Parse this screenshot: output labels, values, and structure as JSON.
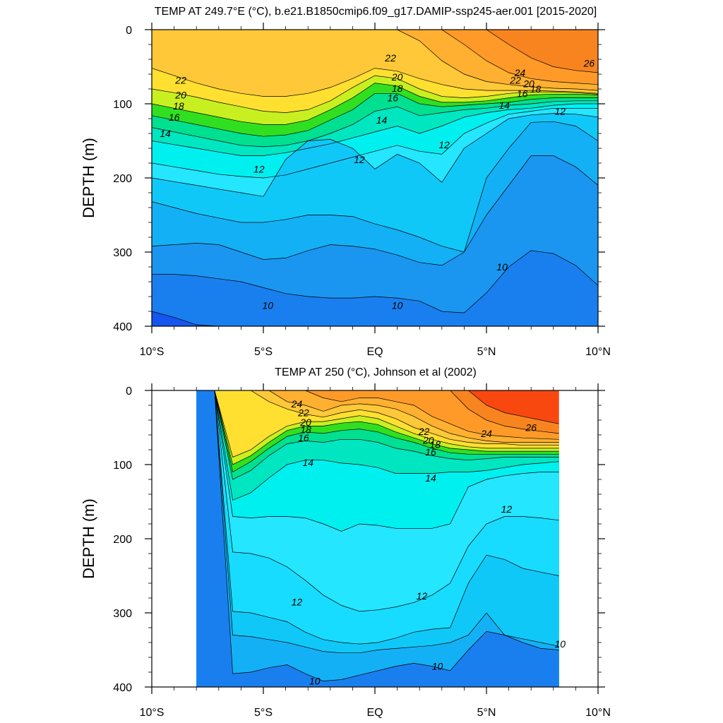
{
  "chart_data": [
    {
      "type": "contour",
      "title": "TEMP AT 249.7°E (°C), b.e21.B1850cmip6.f09_g17.DAMIP-ssp245-aer.001 [2015-2020]",
      "ylabel": "DEPTH (m)",
      "xlabel": "",
      "xlim": [
        -10,
        10
      ],
      "ylim": [
        400,
        0
      ],
      "x_ticks": [
        {
          "value": -10,
          "label": "10°S"
        },
        {
          "value": -5,
          "label": "5°S"
        },
        {
          "value": 0,
          "label": "EQ"
        },
        {
          "value": 5,
          "label": "5°N"
        },
        {
          "value": 10,
          "label": "10°N"
        }
      ],
      "y_ticks": [
        {
          "value": 0,
          "label": "0"
        },
        {
          "value": 100,
          "label": "100"
        },
        {
          "value": 200,
          "label": "200"
        },
        {
          "value": 300,
          "label": "300"
        },
        {
          "value": 400,
          "label": "400"
        }
      ],
      "data_extent": [
        -10,
        10
      ],
      "levels": [
        {
          "value": 26,
          "depth": [
            0,
            0,
            0,
            0,
            0,
            0,
            0,
            0,
            0,
            0,
            0,
            0,
            0,
            0,
            0,
            0,
            0,
            0,
            0,
            0,
            0
          ]
        },
        {
          "value": 25,
          "depth": [
            0,
            0,
            0,
            0,
            0,
            0,
            0,
            0,
            0,
            0,
            0,
            0,
            0,
            0,
            0,
            0,
            20,
            38,
            50,
            55,
            58
          ]
        },
        {
          "value": 24,
          "depth": [
            0,
            0,
            0,
            0,
            0,
            0,
            0,
            0,
            0,
            0,
            0,
            0,
            0,
            0,
            20,
            42,
            58,
            66,
            70,
            72,
            74
          ]
        },
        {
          "value": 23,
          "depth": [
            0,
            0,
            0,
            0,
            0,
            0,
            0,
            0,
            0,
            0,
            0,
            0,
            15,
            42,
            60,
            70,
            74,
            77,
            79,
            80,
            82
          ]
        },
        {
          "value": 22,
          "depth": [
            52,
            62,
            72,
            80,
            86,
            90,
            90,
            86,
            78,
            66,
            52,
            56,
            66,
            74,
            80,
            82,
            82,
            82,
            83,
            84,
            86
          ]
        },
        {
          "value": 20,
          "depth": [
            80,
            85,
            91,
            98,
            104,
            110,
            112,
            108,
            96,
            78,
            62,
            66,
            80,
            90,
            92,
            90,
            86,
            84,
            84,
            85,
            87
          ]
        },
        {
          "value": 18,
          "depth": [
            100,
            106,
            112,
            118,
            124,
            128,
            128,
            122,
            108,
            92,
            72,
            76,
            90,
            98,
            98,
            96,
            92,
            88,
            87,
            87,
            88
          ]
        },
        {
          "value": 16,
          "depth": [
            116,
            122,
            128,
            134,
            140,
            144,
            142,
            136,
            122,
            108,
            86,
            86,
            100,
            104,
            102,
            100,
            98,
            94,
            92,
            92,
            92
          ]
        },
        {
          "value": 15,
          "depth": [
            132,
            138,
            144,
            150,
            156,
            158,
            156,
            150,
            140,
            128,
            110,
            104,
            116,
            112,
            108,
            106,
            102,
            100,
            97,
            96,
            96
          ]
        },
        {
          "value": 14,
          "depth": [
            150,
            155,
            160,
            165,
            170,
            170,
            166,
            160,
            154,
            146,
            138,
            130,
            140,
            130,
            118,
            112,
            108,
            106,
            102,
            100,
            100
          ]
        },
        {
          "value": 13,
          "depth": [
            180,
            185,
            190,
            195,
            198,
            200,
            196,
            188,
            180,
            172,
            164,
            156,
            164,
            168,
            140,
            126,
            114,
            110,
            106,
            106,
            106
          ]
        },
        {
          "value": 12,
          "depth": [
            200,
            205,
            210,
            215,
            220,
            225,
            175,
            150,
            148,
            160,
            188,
            168,
            180,
            206,
            160,
            140,
            120,
            115,
            113,
            114,
            118
          ]
        },
        {
          "value": 11,
          "depth": [
            232,
            240,
            248,
            254,
            260,
            260,
            256,
            250,
            250,
            252,
            262,
            270,
            280,
            292,
            300,
            200,
            160,
            125,
            124,
            130,
            150
          ]
        },
        {
          "value": 10.5,
          "depth": [
            292,
            290,
            288,
            290,
            300,
            310,
            308,
            298,
            290,
            292,
            296,
            304,
            314,
            318,
            300,
            250,
            210,
            170,
            170,
            185,
            210
          ]
        },
        {
          "value": 10,
          "depth": [
            330,
            330,
            332,
            336,
            340,
            348,
            356,
            360,
            362,
            362,
            360,
            362,
            366,
            380,
            382,
            355,
            320,
            298,
            302,
            318,
            345
          ]
        },
        {
          "value": 9.5,
          "depth": [
            380,
            388,
            398,
            400,
            400,
            400,
            400,
            400,
            400,
            400,
            400,
            400,
            400,
            400,
            400,
            400,
            400,
            400,
            400,
            400,
            400
          ]
        }
      ],
      "labels": [
        {
          "text": "26",
          "x": 9.6,
          "depth": 45
        },
        {
          "text": "24",
          "x": 6.5,
          "depth": 58
        },
        {
          "text": "22",
          "x": 0.7,
          "depth": 38
        },
        {
          "text": "22",
          "x": -8.7,
          "depth": 68
        },
        {
          "text": "22",
          "x": 6.3,
          "depth": 68
        },
        {
          "text": "20",
          "x": 1.0,
          "depth": 64
        },
        {
          "text": "20",
          "x": -8.7,
          "depth": 88
        },
        {
          "text": "20",
          "x": 6.9,
          "depth": 73
        },
        {
          "text": "18",
          "x": 1.0,
          "depth": 79
        },
        {
          "text": "18",
          "x": -8.8,
          "depth": 103
        },
        {
          "text": "18",
          "x": 7.2,
          "depth": 80
        },
        {
          "text": "16",
          "x": 0.8,
          "depth": 92
        },
        {
          "text": "16",
          "x": -9.0,
          "depth": 118
        },
        {
          "text": "16",
          "x": 6.6,
          "depth": 86
        },
        {
          "text": "14",
          "x": 0.3,
          "depth": 122
        },
        {
          "text": "14",
          "x": -9.4,
          "depth": 140
        },
        {
          "text": "14",
          "x": 5.8,
          "depth": 102
        },
        {
          "text": "12",
          "x": 8.3,
          "depth": 110
        },
        {
          "text": "12",
          "x": 3.1,
          "depth": 155
        },
        {
          "text": "12",
          "x": -0.7,
          "depth": 175
        },
        {
          "text": "12",
          "x": -5.2,
          "depth": 188
        },
        {
          "text": "10",
          "x": 5.7,
          "depth": 320
        },
        {
          "text": "10",
          "x": -4.8,
          "depth": 372
        },
        {
          "text": "10",
          "x": 1.0,
          "depth": 372
        }
      ]
    },
    {
      "type": "contour",
      "title": "TEMP AT 250 (°C), Johnson et al (2002)",
      "ylabel": "DEPTH (m)",
      "xlabel": "",
      "xlim": [
        -10,
        10
      ],
      "ylim": [
        400,
        0
      ],
      "x_ticks": [
        {
          "value": -10,
          "label": "10°S"
        },
        {
          "value": -5,
          "label": "5°S"
        },
        {
          "value": 0,
          "label": "EQ"
        },
        {
          "value": 5,
          "label": "5°N"
        },
        {
          "value": 10,
          "label": "10°N"
        }
      ],
      "y_ticks": [
        {
          "value": 0,
          "label": "0"
        },
        {
          "value": 100,
          "label": "100"
        },
        {
          "value": 200,
          "label": "200"
        },
        {
          "value": 300,
          "label": "300"
        },
        {
          "value": 400,
          "label": "400"
        }
      ],
      "data_extent": [
        -8,
        8.25
      ],
      "levels": [
        {
          "value": 27,
          "depth": [
            0,
            0,
            0,
            0,
            0,
            0,
            0,
            0,
            0,
            0,
            0,
            0,
            0,
            0,
            0,
            0,
            0,
            0,
            0,
            0,
            0
          ]
        },
        {
          "value": 26,
          "depth": [
            0,
            0,
            0,
            0,
            0,
            0,
            0,
            0,
            0,
            0,
            0,
            0,
            0,
            0,
            0,
            0,
            20,
            30,
            35,
            40,
            45
          ]
        },
        {
          "value": 25,
          "depth": [
            0,
            0,
            0,
            0,
            0,
            0,
            0,
            0,
            0,
            0,
            0,
            0,
            0,
            0,
            0,
            25,
            40,
            48,
            52,
            55,
            58
          ]
        },
        {
          "value": 24,
          "depth": [
            0,
            0,
            0,
            0,
            0,
            0,
            0,
            10,
            15,
            10,
            10,
            15,
            20,
            35,
            45,
            55,
            60,
            62,
            64,
            65,
            66
          ]
        },
        {
          "value": 23,
          "depth": [
            0,
            0,
            0,
            0,
            0,
            15,
            20,
            28,
            20,
            18,
            20,
            25,
            35,
            48,
            58,
            64,
            68,
            70,
            70,
            70,
            70
          ]
        },
        {
          "value": 22,
          "depth": [
            0,
            0,
            0,
            0,
            15,
            25,
            32,
            36,
            30,
            26,
            30,
            38,
            50,
            58,
            66,
            70,
            72,
            72,
            74,
            74,
            74
          ]
        },
        {
          "value": 20,
          "depth": [
            0,
            0,
            90,
            80,
            62,
            48,
            42,
            42,
            38,
            34,
            38,
            48,
            58,
            66,
            72,
            76,
            78,
            78,
            78,
            78,
            78
          ]
        },
        {
          "value": 18,
          "depth": [
            0,
            0,
            100,
            88,
            70,
            54,
            48,
            48,
            44,
            42,
            46,
            56,
            64,
            72,
            78,
            80,
            82,
            82,
            82,
            82,
            82
          ]
        },
        {
          "value": 16,
          "depth": [
            0,
            0,
            110,
            96,
            78,
            62,
            56,
            58,
            54,
            52,
            56,
            64,
            70,
            78,
            84,
            86,
            86,
            86,
            86,
            86,
            86
          ]
        },
        {
          "value": 15,
          "depth": [
            0,
            0,
            120,
            108,
            88,
            72,
            68,
            70,
            66,
            66,
            70,
            78,
            82,
            88,
            92,
            94,
            92,
            90,
            90,
            90,
            90
          ]
        },
        {
          "value": 14,
          "depth": [
            0,
            0,
            148,
            138,
            118,
            100,
            94,
            94,
            98,
            100,
            104,
            112,
            112,
            112,
            110,
            110,
            108,
            104,
            100,
            98,
            96
          ]
        },
        {
          "value": 13,
          "depth": [
            0,
            0,
            170,
            172,
            170,
            170,
            172,
            180,
            190,
            180,
            182,
            186,
            186,
            186,
            180,
            130,
            120,
            115,
            112,
            110,
            110
          ]
        },
        {
          "value": 12.5,
          "depth": [
            0,
            0,
            218,
            220,
            226,
            238,
            256,
            276,
            290,
            298,
            296,
            292,
            286,
            276,
            260,
            210,
            180,
            170,
            170,
            172,
            175
          ]
        },
        {
          "value": 12,
          "depth": [
            0,
            0,
            298,
            300,
            306,
            312,
            326,
            336,
            340,
            342,
            340,
            334,
            326,
            322,
            320,
            260,
            222,
            228,
            240,
            245,
            250
          ]
        },
        {
          "value": 11,
          "depth": [
            0,
            0,
            330,
            332,
            336,
            340,
            346,
            352,
            354,
            354,
            350,
            348,
            346,
            344,
            340,
            330,
            300,
            330,
            335,
            340,
            345
          ]
        },
        {
          "value": 10,
          "depth": [
            0,
            0,
            382,
            380,
            374,
            370,
            382,
            392,
            390,
            384,
            378,
            372,
            368,
            372,
            378,
            350,
            325,
            330,
            340,
            348,
            350
          ]
        }
      ],
      "labels": [
        {
          "text": "26",
          "x": 7.0,
          "depth": 50
        },
        {
          "text": "24",
          "x": -3.5,
          "depth": 18
        },
        {
          "text": "24",
          "x": 5.0,
          "depth": 58
        },
        {
          "text": "22",
          "x": -3.2,
          "depth": 30
        },
        {
          "text": "22",
          "x": 2.2,
          "depth": 55
        },
        {
          "text": "20",
          "x": -3.1,
          "depth": 43
        },
        {
          "text": "20",
          "x": 2.4,
          "depth": 67
        },
        {
          "text": "18",
          "x": -3.1,
          "depth": 53
        },
        {
          "text": "18",
          "x": 2.7,
          "depth": 73
        },
        {
          "text": "16",
          "x": -3.2,
          "depth": 64
        },
        {
          "text": "16",
          "x": 2.5,
          "depth": 83
        },
        {
          "text": "14",
          "x": -3.0,
          "depth": 97
        },
        {
          "text": "14",
          "x": 2.5,
          "depth": 118
        },
        {
          "text": "12",
          "x": 5.9,
          "depth": 160
        },
        {
          "text": "12",
          "x": -3.5,
          "depth": 285
        },
        {
          "text": "12",
          "x": 2.1,
          "depth": 277
        },
        {
          "text": "10",
          "x": 2.8,
          "depth": 372
        },
        {
          "text": "10",
          "x": -2.7,
          "depth": 392
        },
        {
          "text": "10",
          "x": 8.3,
          "depth": 342
        }
      ]
    }
  ]
}
